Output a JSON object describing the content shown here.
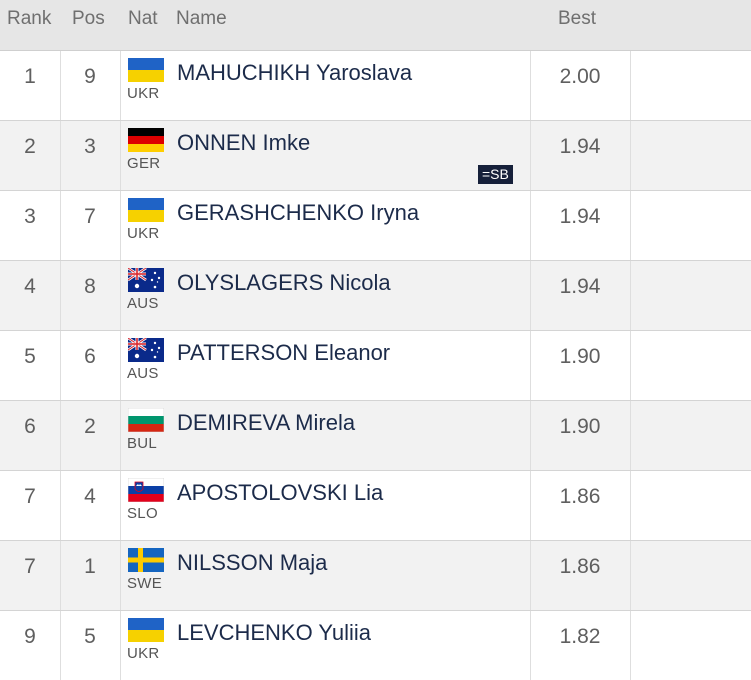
{
  "header": {
    "rank": "Rank",
    "pos": "Pos",
    "nat": "Nat",
    "name": "Name",
    "best": "Best"
  },
  "rows": [
    {
      "rank": "1",
      "pos": "9",
      "nat": "UKR",
      "flag_icon": "ukraine-flag-icon",
      "name": "MAHUCHIKH Yaroslava",
      "best": "2.00",
      "badge": ""
    },
    {
      "rank": "2",
      "pos": "3",
      "nat": "GER",
      "flag_icon": "germany-flag-icon",
      "name": "ONNEN Imke",
      "best": "1.94",
      "badge": "=SB"
    },
    {
      "rank": "3",
      "pos": "7",
      "nat": "UKR",
      "flag_icon": "ukraine-flag-icon",
      "name": "GERASHCHENKO Iryna",
      "best": "1.94",
      "badge": ""
    },
    {
      "rank": "4",
      "pos": "8",
      "nat": "AUS",
      "flag_icon": "australia-flag-icon",
      "name": "OLYSLAGERS Nicola",
      "best": "1.94",
      "badge": ""
    },
    {
      "rank": "5",
      "pos": "6",
      "nat": "AUS",
      "flag_icon": "australia-flag-icon",
      "name": "PATTERSON Eleanor",
      "best": "1.90",
      "badge": ""
    },
    {
      "rank": "6",
      "pos": "2",
      "nat": "BUL",
      "flag_icon": "bulgaria-flag-icon",
      "name": "DEMIREVA Mirela",
      "best": "1.90",
      "badge": ""
    },
    {
      "rank": "7",
      "pos": "4",
      "nat": "SLO",
      "flag_icon": "slovenia-flag-icon",
      "name": "APOSTOLOVSKI Lia",
      "best": "1.86",
      "badge": ""
    },
    {
      "rank": "7",
      "pos": "1",
      "nat": "SWE",
      "flag_icon": "sweden-flag-icon",
      "name": "NILSSON Maja",
      "best": "1.86",
      "badge": ""
    },
    {
      "rank": "9",
      "pos": "5",
      "nat": "UKR",
      "flag_icon": "ukraine-flag-icon",
      "name": "LEVCHENKO Yuliia",
      "best": "1.82",
      "badge": ""
    }
  ],
  "colors": {
    "header_bg": "#e6e6e6",
    "alt_row_bg": "#f2f2f2",
    "name_text": "#1c2b4a",
    "badge_bg": "#16203a"
  }
}
